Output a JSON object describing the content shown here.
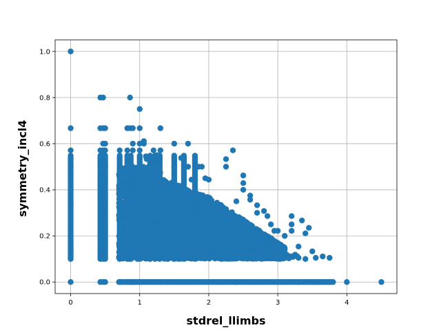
{
  "chart_data": {
    "type": "scatter",
    "title": "",
    "xlabel": "stdrel_llimbs",
    "ylabel": "symmetry_incl4",
    "xlim": [
      -0.225,
      4.725
    ],
    "ylim": [
      -0.05,
      1.05
    ],
    "xticks": [
      0,
      1,
      2,
      3,
      4
    ],
    "yticks": [
      0.0,
      0.2,
      0.4,
      0.6,
      0.8,
      1.0
    ],
    "xtick_labels": [
      "0",
      "1",
      "2",
      "3",
      "4"
    ],
    "ytick_labels": [
      "0.0",
      "0.2",
      "0.4",
      "0.6",
      "0.8",
      "1.0"
    ],
    "grid": true,
    "color": "#1f77b4",
    "x_band_columns": [
      0.0,
      0.43,
      0.47,
      0.5,
      0.71,
      0.82,
      0.87,
      1.0,
      1.15,
      1.22,
      1.29,
      1.5,
      1.64,
      1.8
    ],
    "band_y_range": [
      0.1,
      0.55
    ],
    "points": [
      [
        0.0,
        1.0
      ],
      [
        0.0,
        0.667
      ],
      [
        0.0,
        0.571
      ],
      [
        0.0,
        0.5
      ],
      [
        0.0,
        0.444
      ],
      [
        0.0,
        0.4
      ],
      [
        0.0,
        0.333
      ],
      [
        0.0,
        0.3
      ],
      [
        0.0,
        0.25
      ],
      [
        0.0,
        0.2
      ],
      [
        0.0,
        0.167
      ],
      [
        0.0,
        0.143
      ],
      [
        0.0,
        0.125
      ],
      [
        0.0,
        0.111
      ],
      [
        0.0,
        0.0
      ],
      [
        0.43,
        0.8
      ],
      [
        0.43,
        0.667
      ],
      [
        0.43,
        0.571
      ],
      [
        0.43,
        0.5
      ],
      [
        0.43,
        0.444
      ],
      [
        0.43,
        0.0
      ],
      [
        0.47,
        0.8
      ],
      [
        0.47,
        0.667
      ],
      [
        0.47,
        0.6
      ],
      [
        0.47,
        0.571
      ],
      [
        0.47,
        0.5
      ],
      [
        0.47,
        0.0
      ],
      [
        0.5,
        0.667
      ],
      [
        0.5,
        0.6
      ],
      [
        0.5,
        0.571
      ],
      [
        0.5,
        0.5
      ],
      [
        0.5,
        0.0
      ],
      [
        0.71,
        0.571
      ],
      [
        0.71,
        0.5
      ],
      [
        0.71,
        0.0
      ],
      [
        0.82,
        0.667
      ],
      [
        0.82,
        0.571
      ],
      [
        0.82,
        0.5
      ],
      [
        0.82,
        0.444
      ],
      [
        0.82,
        0.0
      ],
      [
        0.86,
        0.8
      ],
      [
        0.86,
        0.667
      ],
      [
        0.86,
        0.5
      ],
      [
        0.86,
        0.0
      ],
      [
        0.9,
        0.667
      ],
      [
        0.9,
        0.6
      ],
      [
        0.9,
        0.571
      ],
      [
        0.9,
        0.5
      ],
      [
        0.9,
        0.0
      ],
      [
        1.0,
        0.75
      ],
      [
        1.0,
        0.667
      ],
      [
        1.0,
        0.6
      ],
      [
        1.0,
        0.571
      ],
      [
        1.0,
        0.5
      ],
      [
        1.0,
        0.0
      ],
      [
        1.06,
        0.611
      ],
      [
        1.06,
        0.6
      ],
      [
        1.09,
        0.545
      ],
      [
        1.1,
        0.533
      ],
      [
        1.05,
        0.5
      ],
      [
        1.2,
        0.571
      ],
      [
        1.25,
        0.55
      ],
      [
        1.3,
        0.667
      ],
      [
        1.3,
        0.571
      ],
      [
        1.28,
        0.5
      ],
      [
        1.3,
        0.0
      ],
      [
        1.5,
        0.6
      ],
      [
        1.5,
        0.5
      ],
      [
        1.6,
        0.538
      ],
      [
        1.7,
        0.6
      ],
      [
        1.7,
        0.5
      ],
      [
        1.75,
        0.444
      ],
      [
        1.85,
        0.5
      ],
      [
        1.9,
        0.5
      ],
      [
        1.95,
        0.45
      ],
      [
        2.0,
        0.444
      ],
      [
        2.25,
        0.533
      ],
      [
        2.25,
        0.5
      ],
      [
        2.35,
        0.571
      ],
      [
        2.4,
        0.35
      ],
      [
        2.5,
        0.462
      ],
      [
        2.5,
        0.429
      ],
      [
        2.5,
        0.4
      ],
      [
        2.6,
        0.375
      ],
      [
        2.6,
        0.357
      ],
      [
        2.7,
        0.333
      ],
      [
        2.7,
        0.3
      ],
      [
        2.8,
        0.308
      ],
      [
        2.85,
        0.286
      ],
      [
        2.9,
        0.25
      ],
      [
        2.95,
        0.222
      ],
      [
        3.0,
        0.222
      ],
      [
        3.1,
        0.2
      ],
      [
        3.2,
        0.286
      ],
      [
        3.2,
        0.25
      ],
      [
        3.2,
        0.222
      ],
      [
        3.3,
        0.154
      ],
      [
        3.35,
        0.267
      ],
      [
        3.4,
        0.211
      ],
      [
        3.45,
        0.235
      ],
      [
        3.5,
        0.133
      ],
      [
        3.55,
        0.105
      ],
      [
        3.65,
        0.111
      ],
      [
        3.75,
        0.105
      ],
      [
        3.0,
        0.15
      ],
      [
        3.0,
        0.12
      ],
      [
        3.2,
        0.11
      ],
      [
        3.3,
        0.105
      ],
      [
        3.4,
        0.1
      ],
      [
        2.0,
        0.0
      ],
      [
        2.2,
        0.0
      ],
      [
        2.4,
        0.0
      ],
      [
        2.6,
        0.0
      ],
      [
        2.8,
        0.0
      ],
      [
        3.0,
        0.0
      ],
      [
        3.1,
        0.0
      ],
      [
        3.2,
        0.0
      ],
      [
        3.3,
        0.0
      ],
      [
        3.4,
        0.0
      ],
      [
        3.5,
        0.0
      ],
      [
        3.55,
        0.0
      ],
      [
        3.7,
        0.0
      ],
      [
        3.75,
        0.0
      ],
      [
        4.0,
        0.0
      ],
      [
        4.5,
        0.0
      ]
    ]
  }
}
